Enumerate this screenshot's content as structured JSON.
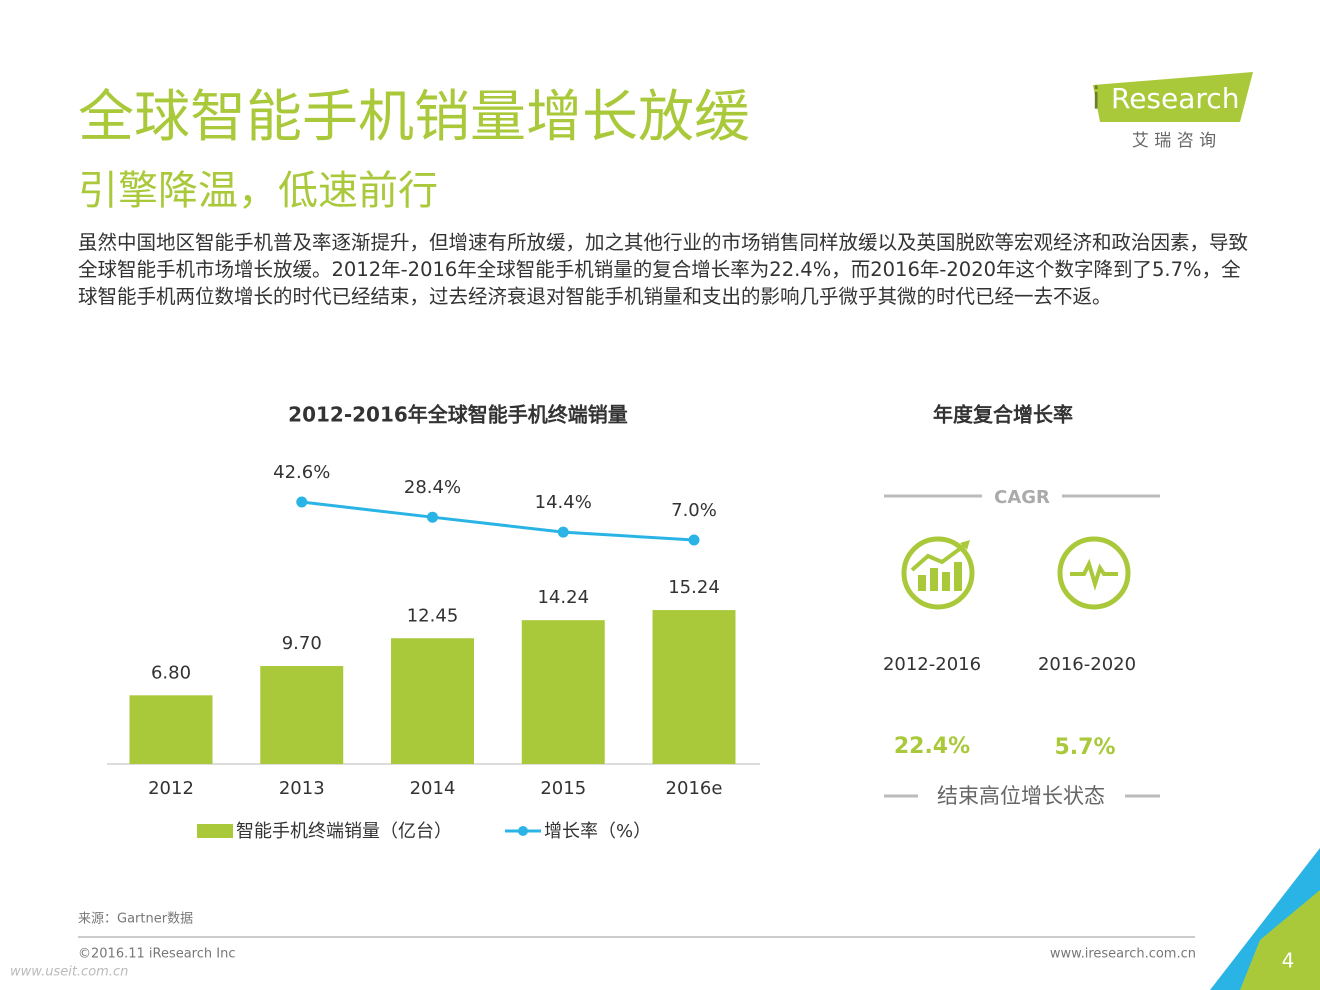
{
  "header": {
    "title": "全球智能手机销量增长放缓",
    "subtitle": "引擎降温，低速前行",
    "logo_i": "i",
    "logo_word": "Research",
    "logo_cn": "艾 瑞 咨 询"
  },
  "body": "虽然中国地区智能手机普及率逐渐提升，但增速有所放缓，加之其他行业的市场销售同样放缓以及英国脱欧等宏观经济和政治因素，导致全球智能手机市场增长放缓。2012年-2016年全球智能手机销量的复合增长率为22.4%，而2016年-2020年这个数字降到了5.7%，全球智能手机两位数增长的时代已经结束，过去经济衰退对智能手机销量和支出的影响几乎微乎其微的时代已经一去不返。",
  "chart_data": {
    "type": "bar",
    "title": "2012-2016年全球智能手机终端销量",
    "categories": [
      "2012",
      "2013",
      "2014",
      "2015",
      "2016e"
    ],
    "series": [
      {
        "name": "智能手机终端销量（亿台）",
        "type": "bar",
        "color": "#a9c93a",
        "values": [
          6.8,
          9.7,
          12.45,
          14.24,
          15.24
        ],
        "value_labels": [
          "6.80",
          "9.70",
          "12.45",
          "14.24",
          "15.24"
        ]
      },
      {
        "name": "增长率（%）",
        "type": "line",
        "color": "#2ab4e6",
        "values": [
          null,
          42.6,
          28.4,
          14.4,
          7.0
        ],
        "value_labels": [
          null,
          "42.6%",
          "28.4%",
          "14.4%",
          "7.0%"
        ]
      }
    ]
  },
  "cagr": {
    "title": "年度复合增长率",
    "label": "CAGR",
    "periods": [
      "2012-2016",
      "2016-2020"
    ],
    "rates": [
      "22.4%",
      "5.7%"
    ],
    "caption": "结束高位增长状态"
  },
  "footer": {
    "source": "来源：Gartner数据",
    "copyright": "©2016.11 iResearch Inc",
    "url": "www.iresearch.com.cn",
    "page": "4",
    "watermark": "www.useit.com.cn"
  }
}
